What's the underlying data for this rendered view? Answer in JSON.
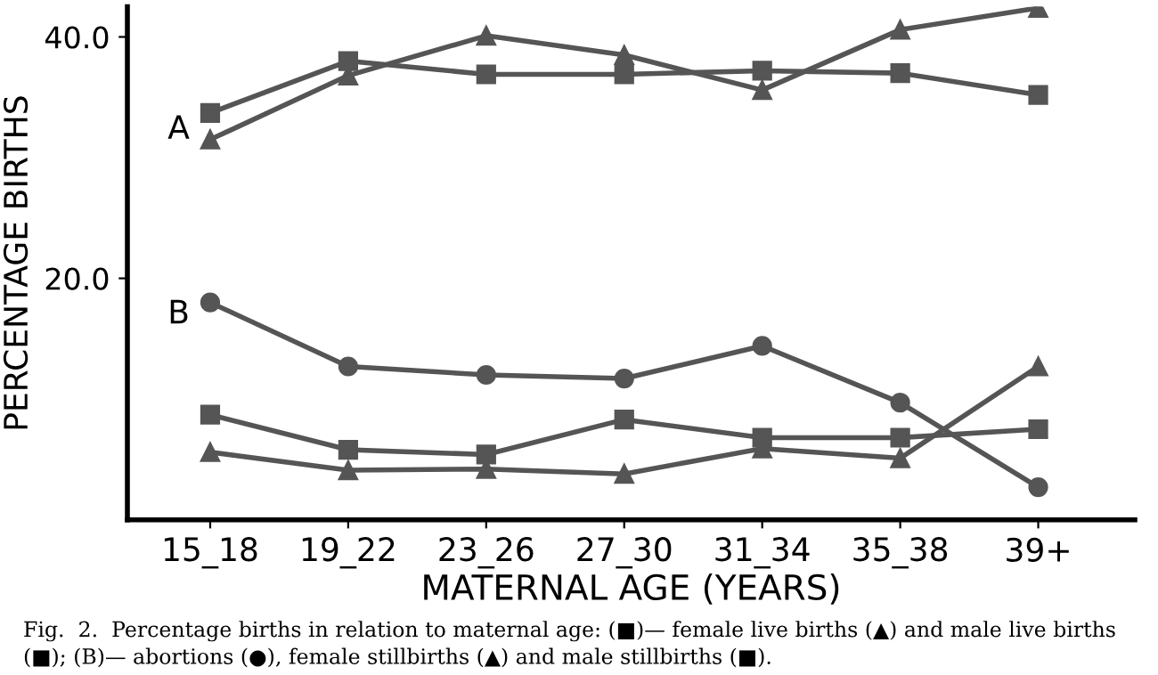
{
  "chart_data": {
    "type": "line",
    "xlabel": "MATERNAL AGE (YEARS)",
    "ylabel": "PERCENTAGE BIRTHS",
    "categories": [
      "15_18",
      "19_22",
      "23_26",
      "27_30",
      "31_34",
      "35_38",
      "39+"
    ],
    "series": [
      {
        "color": "#555555",
        "marker": "triangle",
        "values": [
          31.5,
          36.8,
          40.1,
          38.5,
          35.6,
          40.6,
          42.4
        ]
      },
      {
        "color": "#555555",
        "marker": "square",
        "values": [
          33.7,
          38.0,
          36.9,
          36.9,
          37.2,
          37.0,
          35.2
        ]
      },
      {
        "color": "#555555",
        "marker": "circle",
        "values": [
          18.0,
          12.7,
          12.0,
          11.7,
          14.4,
          9.7,
          2.7
        ]
      },
      {
        "color": "#555555",
        "marker": "square",
        "values": [
          8.7,
          5.8,
          5.4,
          8.3,
          6.8,
          6.8,
          7.5
        ]
      },
      {
        "color": "#555555",
        "marker": "triangle",
        "values": [
          5.6,
          4.1,
          4.2,
          3.8,
          5.9,
          5.1,
          12.7
        ]
      }
    ],
    "ylim": [
      0,
      42.5
    ],
    "yticks": [
      {
        "value": 20,
        "label": "20.0"
      },
      {
        "value": 40,
        "label": "40.0"
      }
    ],
    "grid": false,
    "legend": false,
    "line_style": "solid",
    "annotations": [
      "A",
      "B",
      "Fig.  2.  Percentage births in relation to maternal age: (■)— female live births (▲) and male live births",
      "(■); (B)— abortions (●), female stillbirths (▲) and male stillbirths (■)."
    ]
  }
}
